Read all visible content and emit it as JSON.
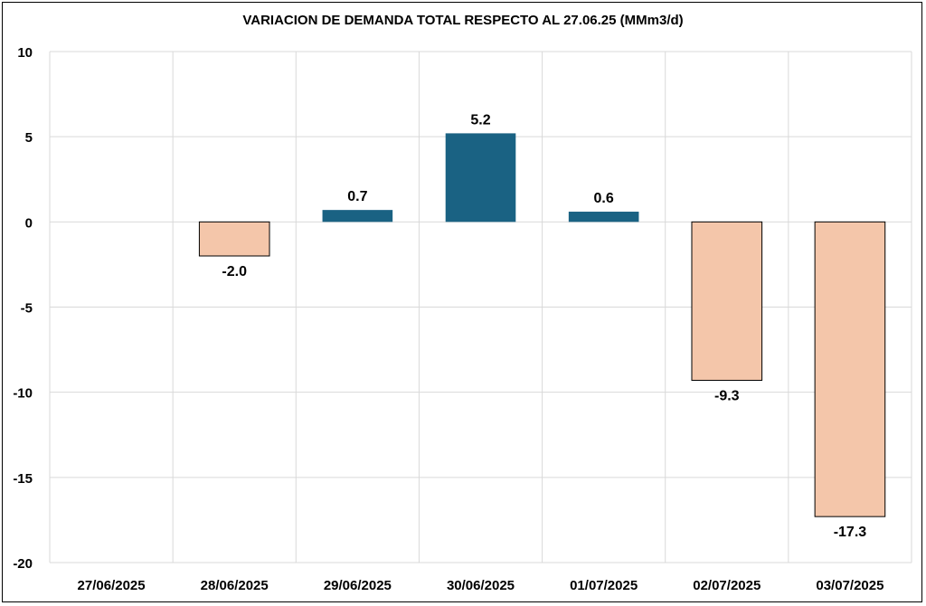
{
  "chart_data": {
    "type": "bar",
    "title": "VARIACION DE DEMANDA TOTAL RESPECTO AL 27.06.25 (MMm3/d)",
    "xlabel": "",
    "ylabel": "",
    "categories": [
      "27/06/2025",
      "28/06/2025",
      "29/06/2025",
      "30/06/2025",
      "01/07/2025",
      "02/07/2025",
      "03/07/2025"
    ],
    "values": [
      null,
      -2.0,
      0.7,
      5.2,
      0.6,
      -9.3,
      -17.3
    ],
    "data_labels": [
      "",
      "-2.0",
      "0.7",
      "5.2",
      "0.6",
      "-9.3",
      "-17.3"
    ],
    "ylim": [
      -20,
      10
    ],
    "yticks": [
      10,
      5,
      0,
      -5,
      -10,
      -15,
      -20
    ],
    "grid": true,
    "legend": "none",
    "colors": {
      "positive": "#1a6283",
      "negative": "#f4c6aa",
      "negative_border": "#000000",
      "grid": "#d9d9d9"
    }
  }
}
